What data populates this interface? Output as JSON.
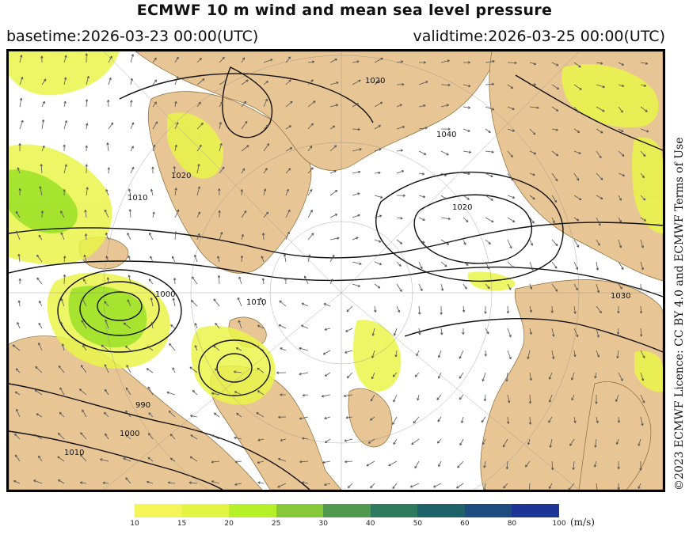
{
  "header": {
    "title": "ECMWF 10 m wind and mean sea level pressure",
    "basetime": "basetime:2026-03-23 00:00(UTC)",
    "validtime": "validtime:2026-03-25 00:00(UTC)"
  },
  "licence": "©2023 ECMWF Licence: CC BY 4.0 and ECMWF Terms of Use",
  "colorbar": {
    "units": "(m/s)",
    "ticks": [
      "10",
      "15",
      "20",
      "25",
      "30",
      "40",
      "50",
      "60",
      "80",
      "100"
    ],
    "colors": [
      "#f5f55a",
      "#e3f542",
      "#b6f028",
      "#88c93a",
      "#4f9a4c",
      "#2f7a5e",
      "#1f6368",
      "#1d4c80",
      "#1f3596"
    ]
  },
  "map": {
    "isobar_labels": [
      "1020",
      "1010",
      "1010",
      "1000",
      "990",
      "1010",
      "1000",
      "1020",
      "1020",
      "1040",
      "1030"
    ],
    "colors": {
      "land": "#e8c594",
      "sea": "#ffffff",
      "wind_fill": "#eaf44a",
      "wind_fill_strong": "#9ee22a",
      "isobar": "#111111"
    }
  }
}
